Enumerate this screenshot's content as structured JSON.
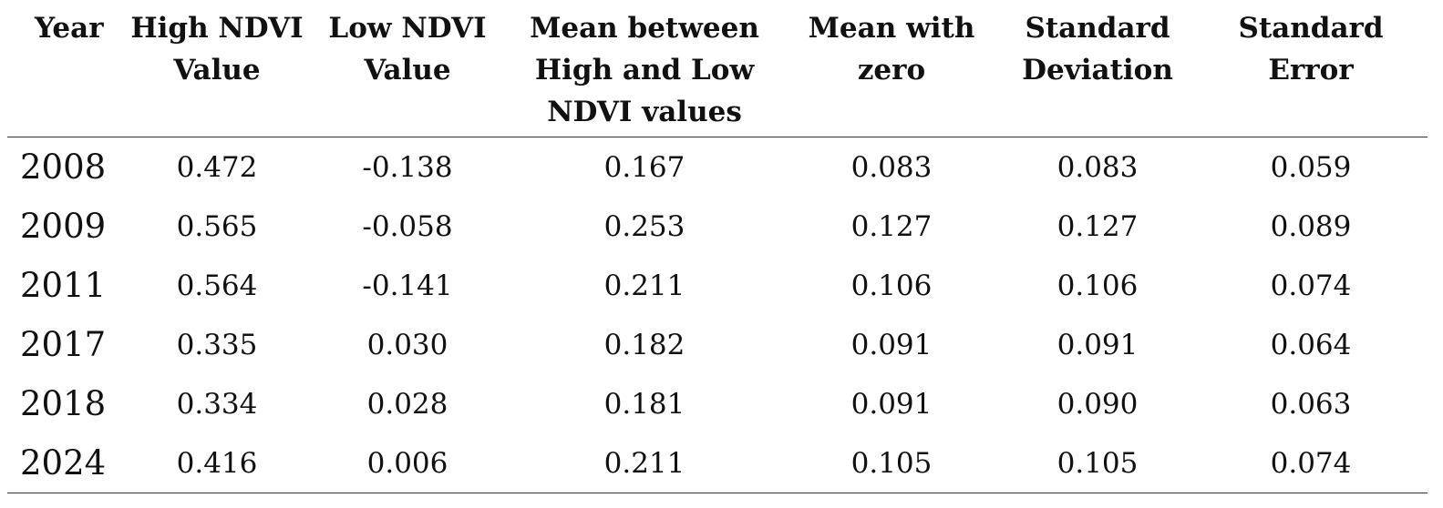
{
  "table": {
    "headers": [
      "Year",
      "High NDVI\nValue",
      "Low NDVI\nValue",
      "Mean between\nHigh and Low\nNDVI values",
      "Mean with\nzero",
      "Standard\nDeviation",
      "Standard\nError"
    ],
    "rows": [
      [
        "2008",
        "0.472",
        "-0.138",
        "0.167",
        "0.083",
        "0.083",
        "0.059"
      ],
      [
        "2009",
        "0.565",
        "-0.058",
        "0.253",
        "0.127",
        "0.127",
        "0.089"
      ],
      [
        "2011",
        "0.564",
        "-0.141",
        "0.211",
        "0.106",
        "0.106",
        "0.074"
      ],
      [
        "2017",
        "0.335",
        "0.030",
        "0.182",
        "0.091",
        "0.091",
        "0.064"
      ],
      [
        "2018",
        "0.334",
        "0.028",
        "0.181",
        "0.091",
        "0.090",
        "0.063"
      ],
      [
        "2024",
        "0.416",
        "0.006",
        "0.211",
        "0.105",
        "0.105",
        "0.074"
      ]
    ]
  }
}
